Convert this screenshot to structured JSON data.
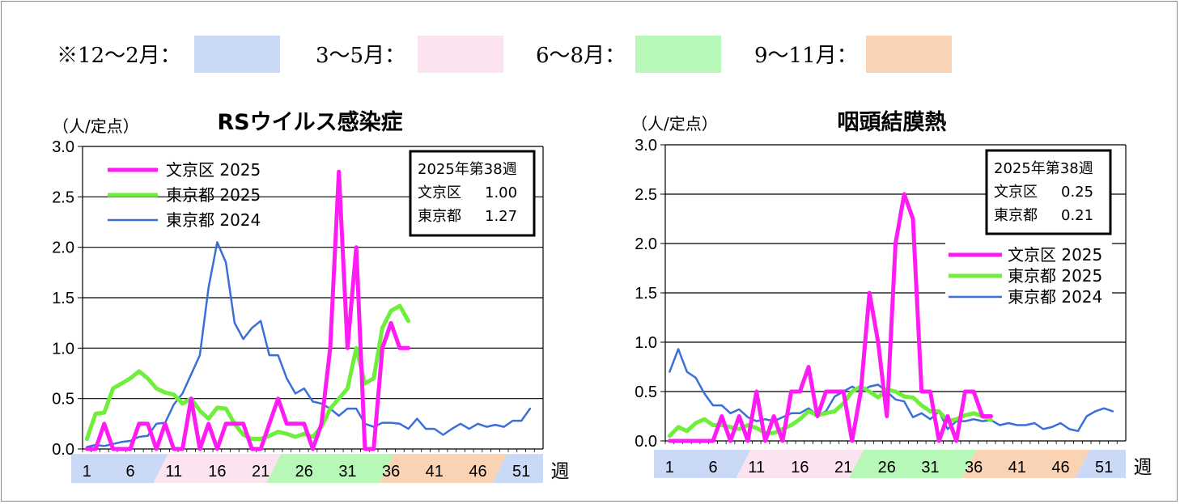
{
  "season_legend": [
    {
      "label": "※12～2月：",
      "color": "#c9d9f6"
    },
    {
      "label": "3～5月：",
      "color": "#fce3f0"
    },
    {
      "label": "6～8月：",
      "color": "#b7f7b7"
    },
    {
      "label": "9～11月：",
      "color": "#fad3b5"
    }
  ],
  "week_unit": "週",
  "colors": {
    "bunkyo_2025": "#ff1bf4",
    "tokyo_2025": "#6fee3c",
    "tokyo_2024": "#3b6fd8"
  },
  "chart_data": [
    {
      "type": "line",
      "title": "RSウイルス感染症",
      "ylabel": "（人/定点）",
      "ylim": [
        0,
        3.0
      ],
      "yticks": [
        "0.0",
        "0.5",
        "1.0",
        "1.5",
        "2.0",
        "2.5",
        "3.0"
      ],
      "x_range": [
        1,
        53
      ],
      "xticks": [
        "1",
        "6",
        "11",
        "16",
        "21",
        "26",
        "31",
        "36",
        "41",
        "46",
        "51"
      ],
      "grid": true,
      "legend_position": "top-left",
      "info_box": {
        "title": "2025年第38週",
        "rows": [
          {
            "label": "文京区",
            "value": "1.00"
          },
          {
            "label": "東京都",
            "value": "1.27"
          }
        ]
      },
      "series": [
        {
          "name": "文京区 2025",
          "x": [
            1,
            2,
            3,
            4,
            5,
            6,
            7,
            8,
            9,
            10,
            11,
            12,
            13,
            14,
            15,
            16,
            17,
            18,
            19,
            20,
            21,
            22,
            23,
            24,
            25,
            26,
            27,
            28,
            29,
            30,
            31,
            32,
            33,
            34,
            35,
            36,
            37,
            38
          ],
          "values": [
            0,
            0,
            0.25,
            0,
            0,
            0,
            0.25,
            0.25,
            0,
            0.25,
            0,
            0,
            0.5,
            0,
            0.25,
            0,
            0.25,
            0.25,
            0.25,
            0,
            0,
            0.25,
            0.5,
            0.25,
            0.25,
            0.25,
            0,
            0.25,
            1.0,
            2.75,
            1.0,
            2.0,
            0,
            0,
            1.0,
            1.25,
            1.0,
            1.0
          ]
        },
        {
          "name": "東京都 2025",
          "x": [
            1,
            2,
            3,
            4,
            5,
            6,
            7,
            8,
            9,
            10,
            11,
            12,
            13,
            14,
            15,
            16,
            17,
            18,
            19,
            20,
            21,
            22,
            23,
            24,
            25,
            26,
            27,
            28,
            29,
            30,
            31,
            32,
            33,
            34,
            35,
            36,
            37,
            38
          ],
          "values": [
            0.1,
            0.35,
            0.36,
            0.6,
            0.65,
            0.7,
            0.77,
            0.7,
            0.6,
            0.56,
            0.54,
            0.45,
            0.5,
            0.38,
            0.3,
            0.41,
            0.4,
            0.25,
            0.14,
            0.1,
            0.1,
            0.13,
            0.17,
            0.15,
            0.12,
            0.15,
            0.12,
            0.22,
            0.4,
            0.5,
            0.6,
            1.0,
            0.65,
            0.7,
            1.2,
            1.37,
            1.42,
            1.27
          ]
        },
        {
          "name": "東京都 2024",
          "x": [
            1,
            2,
            3,
            4,
            5,
            6,
            7,
            8,
            9,
            10,
            11,
            12,
            13,
            14,
            15,
            16,
            17,
            18,
            19,
            20,
            21,
            22,
            23,
            24,
            25,
            26,
            27,
            28,
            29,
            30,
            31,
            32,
            33,
            34,
            35,
            36,
            37,
            38,
            39,
            40,
            41,
            42,
            43,
            44,
            45,
            46,
            47,
            48,
            49,
            50,
            51,
            52
          ],
          "values": [
            0.02,
            0.04,
            0.03,
            0.05,
            0.07,
            0.08,
            0.12,
            0.13,
            0.25,
            0.26,
            0.44,
            0.55,
            0.74,
            0.93,
            1.6,
            2.05,
            1.85,
            1.25,
            1.09,
            1.2,
            1.27,
            0.93,
            0.93,
            0.7,
            0.55,
            0.6,
            0.47,
            0.45,
            0.4,
            0.33,
            0.4,
            0.4,
            0.25,
            0.22,
            0.26,
            0.26,
            0.25,
            0.2,
            0.3,
            0.2,
            0.2,
            0.14,
            0.2,
            0.25,
            0.2,
            0.25,
            0.22,
            0.24,
            0.22,
            0.28,
            0.28,
            0.4
          ]
        }
      ]
    },
    {
      "type": "line",
      "title": "咽頭結膜熱",
      "ylabel": "（人/定点）",
      "ylim": [
        0,
        3.0
      ],
      "yticks": [
        "0.0",
        "0.5",
        "1.0",
        "1.5",
        "2.0",
        "2.5",
        "3.0"
      ],
      "x_range": [
        1,
        53
      ],
      "xticks": [
        "1",
        "6",
        "11",
        "16",
        "21",
        "26",
        "31",
        "36",
        "41",
        "46",
        "51"
      ],
      "grid": true,
      "legend_position": "center-right",
      "info_box": {
        "title": "2025年第38週",
        "rows": [
          {
            "label": "文京区",
            "value": "0.25"
          },
          {
            "label": "東京都",
            "value": "0.21"
          }
        ]
      },
      "series": [
        {
          "name": "文京区 2025",
          "x": [
            1,
            2,
            3,
            4,
            5,
            6,
            7,
            8,
            9,
            10,
            11,
            12,
            13,
            14,
            15,
            16,
            17,
            18,
            19,
            20,
            21,
            22,
            23,
            24,
            25,
            26,
            27,
            28,
            29,
            30,
            31,
            32,
            33,
            34,
            35,
            36,
            37,
            38
          ],
          "values": [
            0,
            0,
            0,
            0,
            0,
            0,
            0.25,
            0,
            0.25,
            0,
            0.5,
            0,
            0.25,
            0,
            0.5,
            0.5,
            0.75,
            0.25,
            0.5,
            0.5,
            0.5,
            0,
            0.5,
            1.5,
            1.0,
            0.25,
            2.0,
            2.5,
            2.25,
            0.5,
            0.5,
            0,
            0.25,
            0,
            0.5,
            0.5,
            0.25,
            0.25
          ]
        },
        {
          "name": "東京都 2025",
          "x": [
            1,
            2,
            3,
            4,
            5,
            6,
            7,
            8,
            9,
            10,
            11,
            12,
            13,
            14,
            15,
            16,
            17,
            18,
            19,
            20,
            21,
            22,
            23,
            24,
            25,
            26,
            27,
            28,
            29,
            30,
            31,
            32,
            33,
            34,
            35,
            36,
            37,
            38
          ],
          "values": [
            0.05,
            0.14,
            0.1,
            0.18,
            0.22,
            0.16,
            0.16,
            0.14,
            0.12,
            0.16,
            0.13,
            0.08,
            0.08,
            0.12,
            0.16,
            0.22,
            0.3,
            0.26,
            0.28,
            0.3,
            0.38,
            0.5,
            0.55,
            0.5,
            0.44,
            0.52,
            0.5,
            0.45,
            0.44,
            0.36,
            0.3,
            0.3,
            0.2,
            0.22,
            0.26,
            0.28,
            0.25,
            0.21
          ]
        },
        {
          "name": "東京都 2024",
          "x": [
            1,
            2,
            3,
            4,
            5,
            6,
            7,
            8,
            9,
            10,
            11,
            12,
            13,
            14,
            15,
            16,
            17,
            18,
            19,
            20,
            21,
            22,
            23,
            24,
            25,
            26,
            27,
            28,
            29,
            30,
            31,
            32,
            33,
            34,
            35,
            36,
            37,
            38,
            39,
            40,
            41,
            42,
            43,
            44,
            45,
            46,
            47,
            48,
            49,
            50,
            51,
            52
          ],
          "values": [
            0.7,
            0.93,
            0.7,
            0.64,
            0.48,
            0.36,
            0.36,
            0.28,
            0.32,
            0.24,
            0.2,
            0.22,
            0.2,
            0.24,
            0.28,
            0.28,
            0.33,
            0.26,
            0.3,
            0.45,
            0.5,
            0.55,
            0.5,
            0.55,
            0.57,
            0.5,
            0.42,
            0.4,
            0.24,
            0.28,
            0.22,
            0.3,
            0.12,
            0.2,
            0.2,
            0.22,
            0.2,
            0.21,
            0.16,
            0.18,
            0.16,
            0.16,
            0.18,
            0.12,
            0.14,
            0.18,
            0.12,
            0.1,
            0.25,
            0.3,
            0.33,
            0.3
          ]
        }
      ]
    }
  ]
}
